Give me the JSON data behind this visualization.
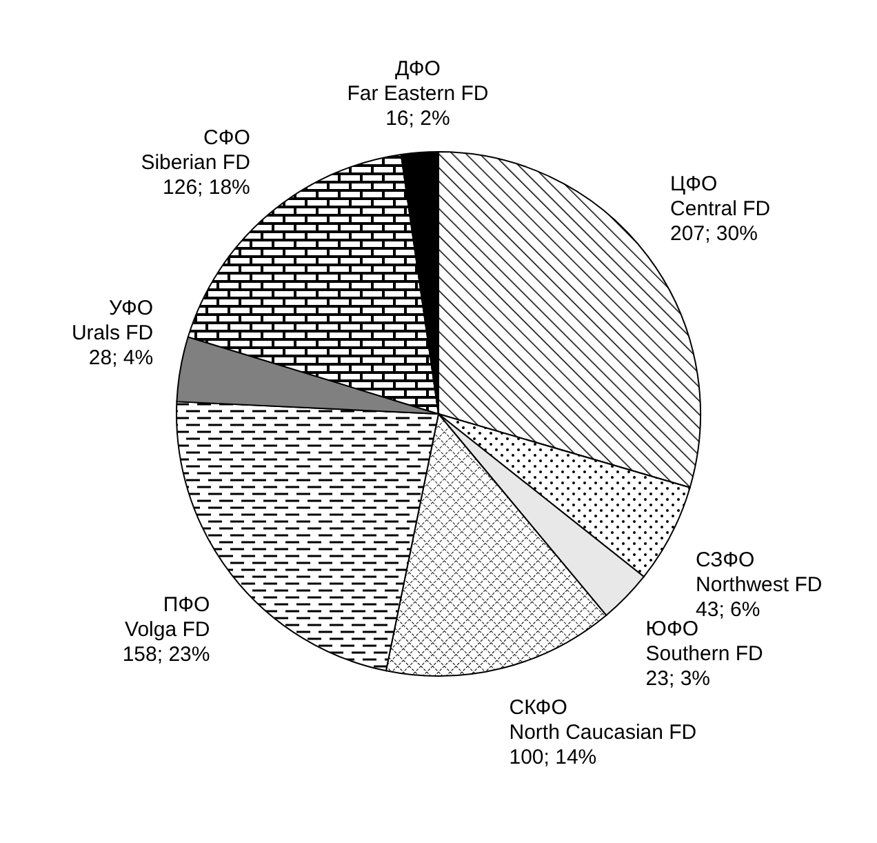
{
  "chart_data": {
    "type": "pie",
    "categories": [
      "ЦФО\nCentral FD",
      "СЗФО\nNorthwest FD",
      "ЮФО\nSouthern FD",
      "СКФО\nNorth Caucasian FD",
      "ПФО\nVolga FD",
      "УФО\nUrals FD",
      "СФО\nSiberian FD",
      "ДФО\nFar Eastern FD"
    ],
    "values": [
      207,
      43,
      23,
      100,
      158,
      28,
      126,
      16
    ],
    "value_labels": [
      "207; 30%",
      "43; 6%",
      "23; 3%",
      "100; 14%",
      "158; 23%",
      "28; 4%",
      "126; 18%",
      "16; 2%"
    ],
    "colors": [
      "#000000",
      "#000000",
      "#e8e8e8",
      "#000000",
      "#000000",
      "#808080",
      "#000000",
      "#000000"
    ]
  }
}
